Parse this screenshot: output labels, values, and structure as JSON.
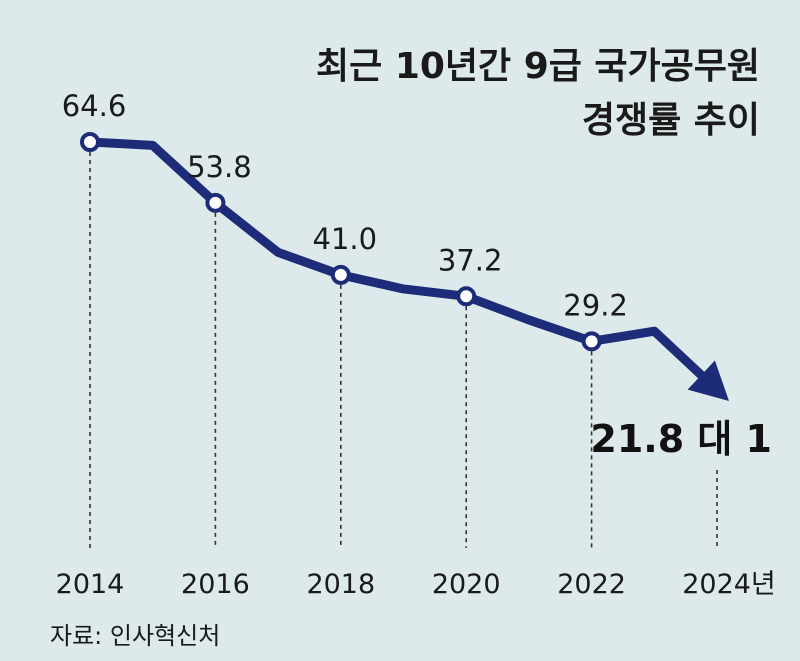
{
  "title": {
    "line1": "최근 10년간 9급 국가공무원",
    "line2": "경쟁률 추이"
  },
  "source": "자료: 인사혁신처",
  "colors": {
    "line": "#1c2c78",
    "background": "#dde9ea",
    "marker_fill": "#ffffff"
  },
  "chart_data": {
    "type": "line",
    "title": "최근 10년간 9급 국가공무원 경쟁률 추이",
    "categories": [
      "2014",
      "2015",
      "2016",
      "2017",
      "2018",
      "2019",
      "2020",
      "2021",
      "2022",
      "2023",
      "2024"
    ],
    "values": [
      64.6,
      64.0,
      53.8,
      45.0,
      41.0,
      38.5,
      37.2,
      33.0,
      29.2,
      31.0,
      21.8
    ],
    "x_ticks": [
      "2014",
      "2016",
      "2018",
      "2020",
      "2022",
      "2024년"
    ],
    "data_labels": [
      {
        "x": "2014",
        "text": "64.6"
      },
      {
        "x": "2016",
        "text": "53.8"
      },
      {
        "x": "2018",
        "text": "41.0"
      },
      {
        "x": "2020",
        "text": "37.2"
      },
      {
        "x": "2022",
        "text": "29.2"
      },
      {
        "x": "2024",
        "text": "21.8 대 1"
      }
    ],
    "markers_at": [
      "2014",
      "2016",
      "2018",
      "2020",
      "2022"
    ],
    "final_arrow": true,
    "xlabel": "",
    "ylabel": "",
    "grid": "dashed vertical drop lines at labeled years"
  }
}
